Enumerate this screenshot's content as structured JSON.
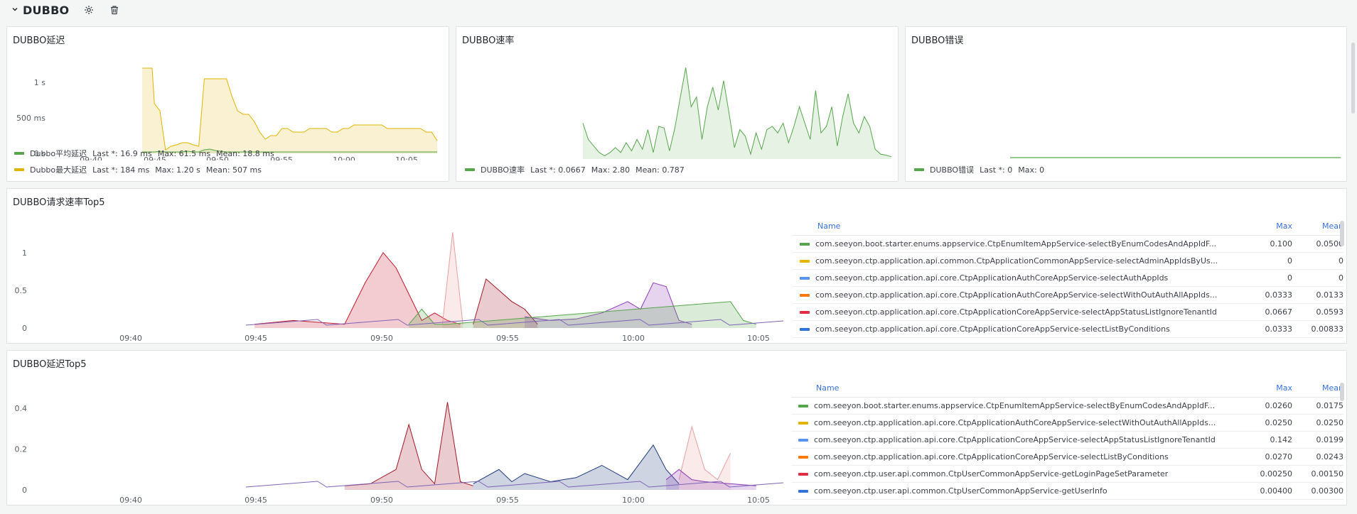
{
  "row": {
    "title": "DUBBO",
    "settings_icon": "gear-icon",
    "delete_icon": "trash-icon"
  },
  "panels": {
    "latency": {
      "title": "DUBBO延迟",
      "legend": [
        {
          "name": "Dubbo平均延迟",
          "color": "#56a64b",
          "last": "Last *: 16.9 ms",
          "max": "Max: 61.5 ms",
          "mean": "Mean: 18.8 ms"
        },
        {
          "name": "Dubbo最大延迟",
          "color": "#e0b400",
          "last": "Last *: 184 ms",
          "max": "Max: 1.20 s",
          "mean": "Mean: 507 ms"
        }
      ]
    },
    "rate": {
      "title": "DUBBO速率",
      "legend": [
        {
          "name": "DUBBO速率",
          "color": "#56a64b",
          "last": "Last *: 0.0667",
          "max": "Max: 2.80",
          "mean": "Mean: 0.787"
        }
      ]
    },
    "errors": {
      "title": "DUBBO错误",
      "legend": [
        {
          "name": "DUBBO错误",
          "color": "#56a64b",
          "last": "Last *: 0",
          "max": "Max: 0"
        }
      ]
    },
    "req_top5": {
      "title": "DUBBO请求速率Top5",
      "headers": {
        "name": "Name",
        "max": "Max",
        "mean": "Mean"
      },
      "rows": [
        {
          "name": "com.seeyon.boot.starter.enums.appservice.CtpEnumItemAppService-selectByEnumCodesAndAppIdF...",
          "color": "#56a64b",
          "max": "0.100",
          "mean": "0.0500"
        },
        {
          "name": "com.seeyon.ctp.application.api.common.CtpApplicationCommonAppService-selectAdminAppIdsByUs...",
          "color": "#e0b400",
          "max": "0",
          "mean": "0"
        },
        {
          "name": "com.seeyon.ctp.application.api.core.CtpApplicationAuthCoreAppService-selectAuthAppIds",
          "color": "#5794f2",
          "max": "0",
          "mean": "0"
        },
        {
          "name": "com.seeyon.ctp.application.api.core.CtpApplicationAuthCoreAppService-selectWithOutAuthAllAppIds...",
          "color": "#ff780a",
          "max": "0.0333",
          "mean": "0.0133"
        },
        {
          "name": "com.seeyon.ctp.application.api.core.CtpApplicationCoreAppService-selectAppStatusListIgnoreTenantId",
          "color": "#e02f44",
          "max": "0.0667",
          "mean": "0.0593"
        },
        {
          "name": "com.seeyon.ctp.application.api.core.CtpApplicationCoreAppService-selectListByConditions",
          "color": "#3274d9",
          "max": "0.0333",
          "mean": "0.00833"
        }
      ]
    },
    "lat_top5": {
      "title": "DUBBO延迟Top5",
      "headers": {
        "name": "Name",
        "max": "Max",
        "mean": "Mean"
      },
      "rows": [
        {
          "name": "com.seeyon.boot.starter.enums.appservice.CtpEnumItemAppService-selectByEnumCodesAndAppIdF...",
          "color": "#56a64b",
          "max": "0.0260",
          "mean": "0.0175"
        },
        {
          "name": "com.seeyon.ctp.application.api.core.CtpApplicationAuthCoreAppService-selectWithOutAuthAllAppIds...",
          "color": "#e0b400",
          "max": "0.0250",
          "mean": "0.0250"
        },
        {
          "name": "com.seeyon.ctp.application.api.core.CtpApplicationCoreAppService-selectAppStatusListIgnoreTenantId",
          "color": "#5794f2",
          "max": "0.142",
          "mean": "0.0199"
        },
        {
          "name": "com.seeyon.ctp.application.api.core.CtpApplicationCoreAppService-selectListByConditions",
          "color": "#ff780a",
          "max": "0.0270",
          "mean": "0.0243"
        },
        {
          "name": "com.seeyon.ctp.user.api.common.CtpUserCommonAppService-getLoginPageSetParameter",
          "color": "#e02f44",
          "max": "0.00250",
          "mean": "0.00150"
        },
        {
          "name": "com.seeyon.ctp.user.api.common.CtpUserCommonAppService-getUserInfo",
          "color": "#3274d9",
          "max": "0.00400",
          "mean": "0.00300"
        }
      ]
    }
  },
  "chart_data": [
    {
      "type": "area",
      "panel": "DUBBO延迟",
      "x_ticks": [
        "09:40",
        "09:45",
        "09:50",
        "09:55",
        "10:00",
        "10:05"
      ],
      "y_ticks": [
        "0 s",
        "500 ms",
        "1 s"
      ],
      "ylim": [
        0,
        1.3
      ],
      "x": [
        1,
        1.6,
        1.9,
        2.1,
        2.6,
        3.1,
        3.6,
        4.1,
        4.6,
        5.1,
        5.6,
        6.1,
        6.6,
        7.1,
        7.6,
        8.1,
        8.6,
        9.1,
        9.6,
        10.1,
        10.6,
        11.1,
        11.6,
        12.1,
        12.6,
        13.1,
        13.6,
        14.1,
        14.6,
        15.1,
        15.6,
        16.1,
        16.6,
        17.1,
        17.6,
        18.1,
        18.6,
        19.1,
        19.6,
        20.1,
        20.6,
        21.1,
        21.6,
        22.1,
        22.6,
        23.1,
        23.6,
        24.1,
        24.6,
        25.1,
        25.6,
        26.1,
        26.6,
        27.1,
        27.6
      ],
      "series": [
        {
          "name": "Dubbo最大延迟",
          "values": [
            1.2,
            1.2,
            1.2,
            0.7,
            0.6,
            0.05,
            0.1,
            0.12,
            0.15,
            0.15,
            0.12,
            0.1,
            1.05,
            1.05,
            1.05,
            1.05,
            1.05,
            0.8,
            0.6,
            0.55,
            0.55,
            0.45,
            0.3,
            0.2,
            0.25,
            0.25,
            0.35,
            0.35,
            0.3,
            0.3,
            0.3,
            0.35,
            0.35,
            0.35,
            0.35,
            0.3,
            0.3,
            0.35,
            0.35,
            0.4,
            0.4,
            0.4,
            0.4,
            0.4,
            0.4,
            0.35,
            0.35,
            0.35,
            0.35,
            0.35,
            0.35,
            0.35,
            0.3,
            0.3,
            0.18
          ]
        },
        {
          "name": "Dubbo平均延迟",
          "values": [
            0.02,
            0.02,
            0.02,
            0.02,
            0.03,
            0.02,
            0.02,
            0.02,
            0.02,
            0.03,
            0.02,
            0.02,
            0.05,
            0.06,
            0.04,
            0.03,
            0.02,
            0.02,
            0.02,
            0.02,
            0.02,
            0.02,
            0.02,
            0.02,
            0.02,
            0.02,
            0.02,
            0.02,
            0.02,
            0.02,
            0.02,
            0.02,
            0.02,
            0.02,
            0.02,
            0.02,
            0.02,
            0.02,
            0.02,
            0.02,
            0.02,
            0.02,
            0.02,
            0.02,
            0.02,
            0.02,
            0.02,
            0.02,
            0.02,
            0.02,
            0.02,
            0.02,
            0.02,
            0.02,
            0.02
          ]
        }
      ]
    },
    {
      "type": "area",
      "panel": "DUBBO速率",
      "series": [
        {
          "name": "DUBBO速率",
          "values": [
            1.1,
            0.6,
            0.4,
            0.2,
            0.1,
            0.2,
            0.35,
            0.2,
            0.5,
            0.25,
            0.6,
            0.3,
            0.9,
            0.2,
            1.0,
            0.95,
            0.25,
            0.95,
            1.9,
            2.8,
            1.6,
            1.9,
            0.6,
            1.6,
            2.2,
            1.5,
            2.4,
            1.4,
            0.35,
            0.9,
            0.7,
            0.15,
            0.8,
            0.3,
            0.9,
            1.0,
            0.8,
            1.1,
            0.5,
            1.0,
            1.6,
            1.1,
            0.6,
            2.1,
            0.8,
            1.0,
            1.6,
            0.4,
            1.3,
            2.0,
            1.1,
            0.8,
            1.3,
            1.0,
            0.3,
            0.15,
            0.12,
            0.07
          ]
        }
      ]
    },
    {
      "type": "line",
      "panel": "DUBBO错误",
      "series": [
        {
          "name": "DUBBO错误",
          "values": [
            0,
            0
          ]
        }
      ]
    },
    {
      "type": "area",
      "panel": "DUBBO请求速率Top5",
      "x_ticks": [
        "09:40",
        "09:45",
        "09:50",
        "09:55",
        "10:00",
        "10:05"
      ],
      "y_ticks": [
        "0",
        "0.5",
        "1"
      ],
      "ylim": [
        0,
        1.3
      ],
      "series": [
        {
          "name": "red",
          "color": "#c4162a",
          "x": [
            9.5,
            11,
            13,
            13.8,
            14.5,
            15,
            16,
            16.5,
            17,
            17.5
          ],
          "values": [
            0.05,
            0.1,
            0.05,
            0.6,
            1.0,
            0.8,
            0.1,
            0.2,
            0.1,
            0.05
          ]
        },
        {
          "name": "salmon",
          "color": "#e8a0a0",
          "x": [
            16.8,
            17.2,
            17.6
          ],
          "values": [
            0.05,
            1.27,
            0.05
          ]
        },
        {
          "name": "dark-red",
          "color": "#a01827",
          "x": [
            18,
            18.5,
            19,
            19.5,
            20,
            20.5
          ],
          "values": [
            0.05,
            0.65,
            0.5,
            0.35,
            0.25,
            0.05
          ]
        },
        {
          "name": "purple",
          "color": "#8f3bb8",
          "x": [
            20,
            21,
            22,
            23,
            24,
            24.5,
            25,
            25.5,
            26,
            26.5
          ],
          "values": [
            0.15,
            0.1,
            0.12,
            0.2,
            0.35,
            0.25,
            0.6,
            0.55,
            0.1,
            0.05
          ]
        },
        {
          "name": "green",
          "color": "#56a64b",
          "x": [
            15.5,
            16,
            16.5,
            17,
            28,
            28.5,
            29
          ],
          "values": [
            0.05,
            0.25,
            0.05,
            0.05,
            0.35,
            0.1,
            0.05
          ]
        }
      ]
    },
    {
      "type": "area",
      "panel": "DUBBO延迟Top5",
      "x_ticks": [
        "09:40",
        "09:45",
        "09:50",
        "09:55",
        "10:00",
        "10:05"
      ],
      "y_ticks": [
        "0",
        "0.2",
        "0.4"
      ],
      "ylim": [
        0,
        0.48
      ],
      "series": [
        {
          "name": "dark-red",
          "color": "#a01827",
          "x": [
            13,
            14,
            15,
            15.5,
            16,
            16.5,
            17,
            17.5,
            18
          ],
          "values": [
            0.02,
            0.03,
            0.1,
            0.32,
            0.1,
            0.03,
            0.43,
            0.04,
            0.02
          ]
        },
        {
          "name": "navy",
          "color": "#1f3b7a",
          "x": [
            18,
            19,
            19.5,
            20,
            21,
            22,
            23,
            24,
            25,
            25.5,
            26
          ],
          "values": [
            0.03,
            0.1,
            0.04,
            0.08,
            0.04,
            0.06,
            0.12,
            0.05,
            0.22,
            0.1,
            0.03
          ]
        },
        {
          "name": "pink",
          "color": "#e8a0a0",
          "x": [
            26,
            26.5,
            27,
            27.5,
            28
          ],
          "values": [
            0.05,
            0.31,
            0.1,
            0.05,
            0.18
          ]
        },
        {
          "name": "violet",
          "color": "#8f3bb8",
          "x": [
            25.5,
            26,
            26.5,
            27,
            28,
            29
          ],
          "values": [
            0.05,
            0.1,
            0.05,
            0.04,
            0.03,
            0.02
          ]
        }
      ]
    }
  ]
}
